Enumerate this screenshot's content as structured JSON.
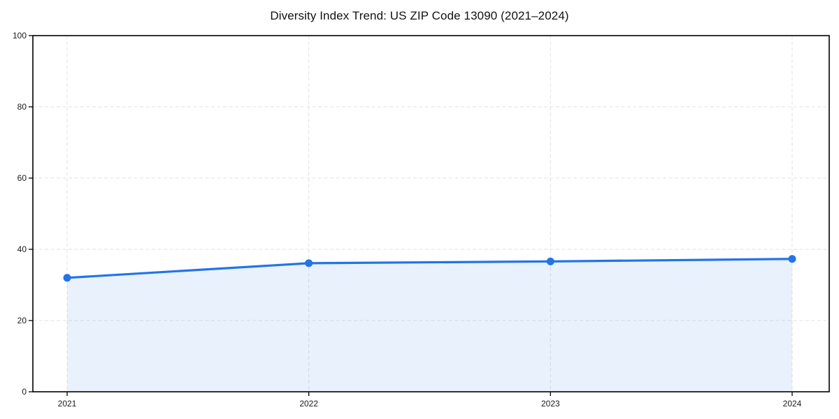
{
  "chart_data": {
    "type": "line",
    "title": "Diversity Index Trend: US ZIP Code 13090 (2021–2024)",
    "categories": [
      "2021",
      "2022",
      "2023",
      "2024"
    ],
    "series": [
      {
        "name": "Diversity Index",
        "values": [
          32.0,
          36.1,
          36.6,
          37.3
        ]
      }
    ],
    "xlabel": "",
    "ylabel": "",
    "ylim": [
      0,
      100
    ],
    "yticks": [
      0,
      20,
      40,
      60,
      80,
      100
    ],
    "grid": true,
    "legend": false,
    "area_fill": true,
    "colors": {
      "line": "#2374e8",
      "marker": "#2374e8",
      "fill": "#2374e8",
      "fill_opacity": 0.1,
      "grid": "#e2e2e2",
      "axis": "#000000",
      "tick_text": "#1a1a1a",
      "background": "#ffffff"
    }
  }
}
